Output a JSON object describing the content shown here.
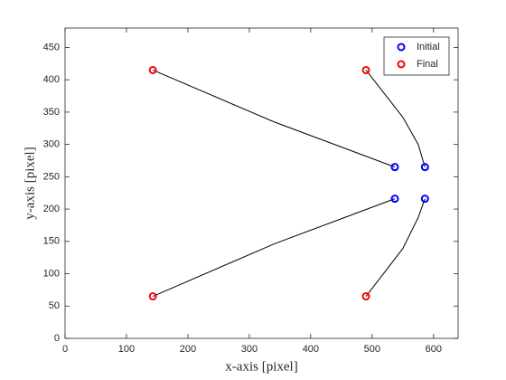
{
  "chart_data": {
    "type": "scatter",
    "xlabel": "x-axis [pixel]",
    "ylabel": "y-axis [pixel]",
    "xlim": [
      0,
      640
    ],
    "ylim": [
      0,
      480
    ],
    "xticks": [
      0,
      100,
      200,
      300,
      400,
      500,
      600
    ],
    "yticks": [
      0,
      50,
      100,
      150,
      200,
      250,
      300,
      350,
      400,
      450
    ],
    "legend": "upper right",
    "series": [
      {
        "name": "Initial",
        "color": "#0000ff",
        "x": [
          537,
          586,
          537,
          586
        ],
        "y": [
          265,
          265,
          216,
          216
        ]
      },
      {
        "name": "Final",
        "color": "#ff0000",
        "x": [
          143,
          490,
          143,
          490
        ],
        "y": [
          415,
          415,
          65,
          65
        ]
      }
    ],
    "lines": {
      "color": "#000000",
      "paths": [
        {
          "x": [
            537,
            340,
            143
          ],
          "y": [
            265,
            335,
            415
          ]
        },
        {
          "x": [
            586,
            575,
            550,
            490
          ],
          "y": [
            265,
            300,
            342,
            415
          ]
        },
        {
          "x": [
            537,
            340,
            143
          ],
          "y": [
            216,
            146,
            65
          ]
        },
        {
          "x": [
            586,
            575,
            550,
            490
          ],
          "y": [
            216,
            187,
            139,
            65
          ]
        }
      ]
    }
  }
}
